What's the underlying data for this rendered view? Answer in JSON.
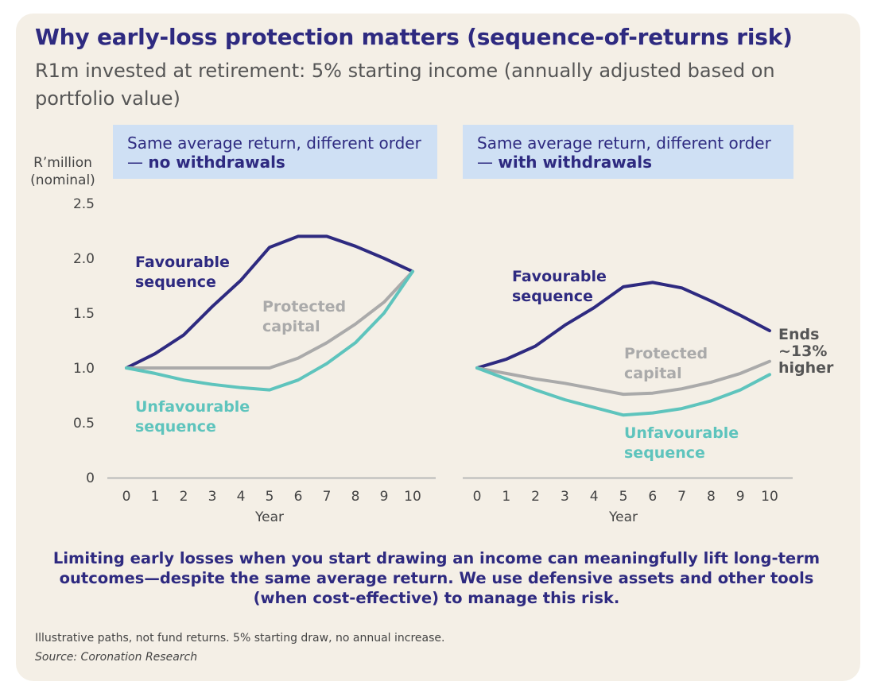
{
  "title": "Why early-loss protection matters (sequence-of-returns risk)",
  "subtitle": "R1m invested at retirement: 5% starting income (annually adjusted based on portfolio value)",
  "panels": {
    "left": {
      "header_text": "Same average return, different order — ",
      "header_bold": "no withdrawals"
    },
    "right": {
      "header_text": "Same average return, different order — ",
      "header_bold": "with withdrawals"
    }
  },
  "colors": {
    "favourable": "#2e2a80",
    "protected": "#aaaaaa",
    "unfavourable": "#5ec4bd",
    "axis": "#b8b8b8",
    "tick_text": "#444444"
  },
  "chart_data": [
    {
      "type": "line",
      "title": "Same average return, different order — no withdrawals",
      "xlabel": "Year",
      "ylabel": "R’million (nominal)",
      "ylabel_lines": [
        "R’million",
        "(nominal)"
      ],
      "x": [
        0,
        1,
        2,
        3,
        4,
        5,
        6,
        7,
        8,
        9,
        10
      ],
      "ylim": [
        0,
        2.5
      ],
      "yticks": [
        "0",
        "0.5",
        "1.0",
        "1.5",
        "2.0",
        "2.5"
      ],
      "series": [
        {
          "name": "Favourable sequence",
          "label_lines": [
            "Favourable",
            "sequence"
          ],
          "color": "#2e2a80",
          "values": [
            1.0,
            1.13,
            1.3,
            1.56,
            1.8,
            2.1,
            2.2,
            2.2,
            2.11,
            2.0,
            1.88
          ]
        },
        {
          "name": "Protected capital",
          "label_lines": [
            "Protected",
            "capital"
          ],
          "color": "#aaaaaa",
          "values": [
            1.0,
            1.0,
            1.0,
            1.0,
            1.0,
            1.0,
            1.09,
            1.23,
            1.4,
            1.6,
            1.88
          ]
        },
        {
          "name": "Unfavourable sequence",
          "label_lines": [
            "Unfavourable",
            "sequence"
          ],
          "color": "#5ec4bd",
          "values": [
            1.0,
            0.95,
            0.89,
            0.85,
            0.82,
            0.8,
            0.89,
            1.04,
            1.23,
            1.5,
            1.88
          ]
        }
      ]
    },
    {
      "type": "line",
      "title": "Same average return, different order — with withdrawals",
      "xlabel": "Year",
      "x": [
        0,
        1,
        2,
        3,
        4,
        5,
        6,
        7,
        8,
        9,
        10
      ],
      "ylim": [
        0,
        2.5
      ],
      "series": [
        {
          "name": "Favourable sequence",
          "label_lines": [
            "Favourable",
            "sequence"
          ],
          "color": "#2e2a80",
          "values": [
            1.0,
            1.08,
            1.2,
            1.39,
            1.55,
            1.74,
            1.78,
            1.73,
            1.61,
            1.48,
            1.34
          ]
        },
        {
          "name": "Protected capital",
          "label_lines": [
            "Protected",
            "capital"
          ],
          "color": "#aaaaaa",
          "values": [
            1.0,
            0.95,
            0.9,
            0.86,
            0.81,
            0.76,
            0.77,
            0.81,
            0.87,
            0.95,
            1.06
          ]
        },
        {
          "name": "Unfavourable sequence",
          "label_lines": [
            "Unfavourable",
            "sequence"
          ],
          "color": "#5ec4bd",
          "values": [
            1.0,
            0.9,
            0.8,
            0.71,
            0.64,
            0.57,
            0.59,
            0.63,
            0.7,
            0.8,
            0.94
          ]
        }
      ],
      "annotation": {
        "text": "Ends ~13% higher",
        "lines": [
          "Ends",
          "~13%",
          "higher"
        ]
      }
    }
  ],
  "conclusion": "Limiting early losses when you start drawing an income can meaningfully lift long-term outcomes—despite the same average return. We use defensive assets and other tools (when cost-effective) to manage this risk.",
  "footnote": "Illustrative paths, not fund returns. 5% starting draw, no annual increase.",
  "source": "Source: Coronation Research"
}
